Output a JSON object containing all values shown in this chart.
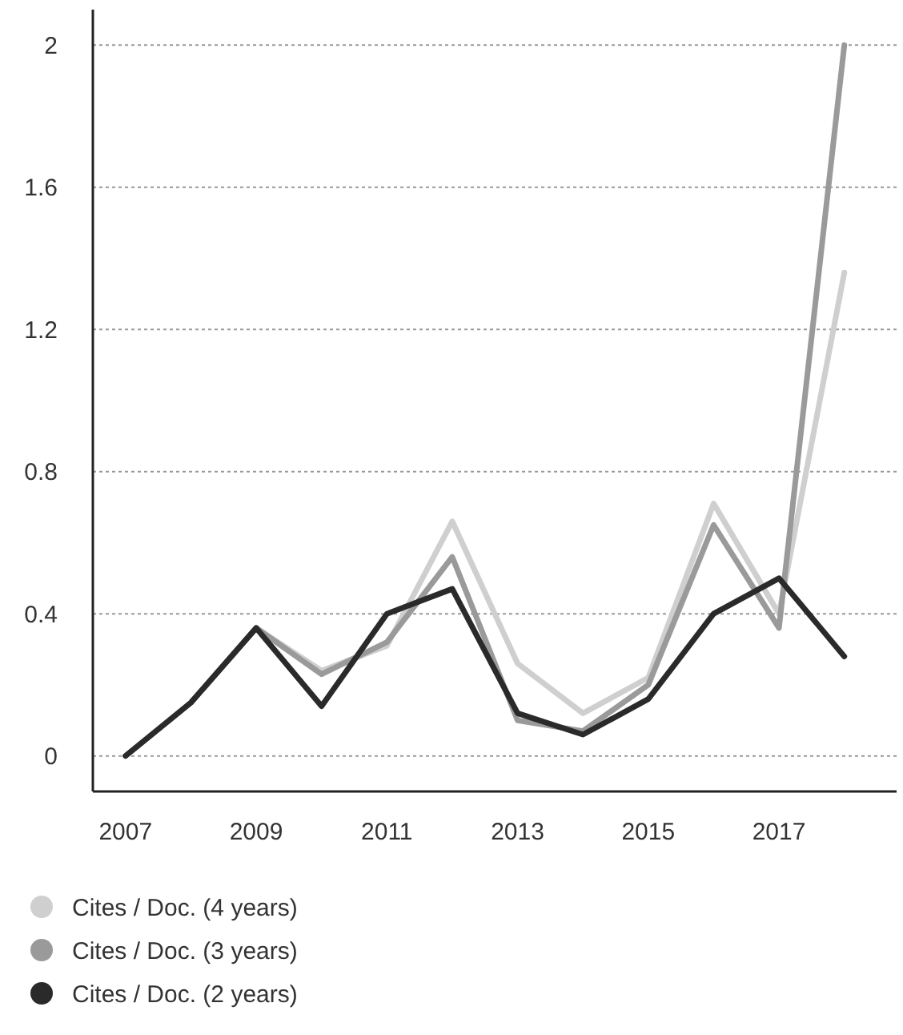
{
  "chart_data": {
    "type": "line",
    "x": [
      2007,
      2008,
      2009,
      2010,
      2011,
      2012,
      2013,
      2014,
      2015,
      2016,
      2017,
      2018
    ],
    "series": [
      {
        "name": "Cites / Doc. (4 years)",
        "color": "#cfcfcf",
        "values": [
          0,
          0.15,
          0.36,
          0.24,
          0.31,
          0.66,
          0.26,
          0.12,
          0.22,
          0.71,
          0.4,
          1.36
        ]
      },
      {
        "name": "Cites / Doc. (3 years)",
        "color": "#9a9a9a",
        "values": [
          0,
          0.15,
          0.36,
          0.23,
          0.32,
          0.56,
          0.1,
          0.07,
          0.2,
          0.65,
          0.36,
          2.0
        ]
      },
      {
        "name": "Cites / Doc. (2 years)",
        "color": "#2a2a2a",
        "values": [
          0,
          0.15,
          0.36,
          0.14,
          0.4,
          0.47,
          0.12,
          0.06,
          0.16,
          0.4,
          0.5,
          0.28
        ]
      }
    ],
    "xlim": [
      2006.5,
      2018.8
    ],
    "xticks": [
      2007,
      2009,
      2011,
      2013,
      2015,
      2017
    ],
    "ylim": [
      -0.1,
      2.1
    ],
    "yticks": [
      0,
      0.4,
      0.8,
      1.2,
      1.6,
      2
    ],
    "grid": "y",
    "legend": "bottom",
    "line_style": "solid"
  }
}
